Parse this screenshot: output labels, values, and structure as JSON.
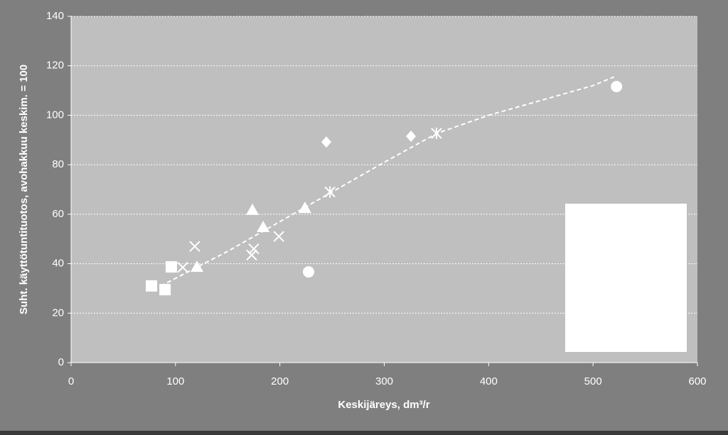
{
  "chart_data": {
    "type": "scatter",
    "x_label": "Keskijäreys, dm³/r",
    "y_label": "Suht. käyttötuntituotos,  avohakkuu keskim. = 100",
    "xlim": [
      0,
      600
    ],
    "xticks": [
      0,
      100,
      200,
      300,
      400,
      500,
      600
    ],
    "ylim": [
      0,
      140
    ],
    "yticks": [
      0,
      20,
      40,
      60,
      80,
      100,
      120,
      140
    ],
    "grid": true,
    "legend": "lower right",
    "series": [
      {
        "marker": "square",
        "color": "#ffffff",
        "x": [
          77,
          90,
          96
        ],
        "values": [
          31,
          29.5,
          38.7
        ]
      },
      {
        "marker": "triangle",
        "color": "#ffffff",
        "x": [
          120.6,
          173.7,
          184,
          224
        ],
        "values": [
          38.7,
          61.7,
          54.8,
          62.5
        ]
      },
      {
        "marker": "cross",
        "color": "#ffffff",
        "x": [
          107,
          118.5,
          175,
          173,
          199
        ],
        "values": [
          38.5,
          47,
          46,
          43.5,
          51
        ]
      },
      {
        "marker": "asterisk",
        "color": "#ffffff",
        "x": [
          248,
          350
        ],
        "values": [
          69,
          92.7
        ]
      },
      {
        "marker": "diamond",
        "color": "#ffffff",
        "x": [
          244.5,
          325.6
        ],
        "values": [
          89.2,
          91.5
        ]
      },
      {
        "marker": "circle",
        "color": "#ffffff",
        "x": [
          227.5,
          522.5
        ],
        "values": [
          36.7,
          111.6
        ]
      }
    ],
    "trendline": {
      "color": "#ffffff",
      "dashed": true,
      "x": [
        86,
        150,
        200,
        250,
        300,
        350,
        400,
        450,
        500,
        520
      ],
      "values": [
        31,
        45,
        57,
        69,
        81,
        92.6,
        100,
        106,
        112,
        115.5
      ]
    }
  }
}
